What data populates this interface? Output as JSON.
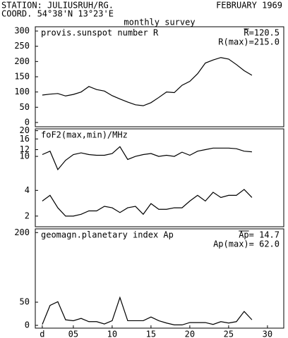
{
  "header": {
    "station": "STATION: JULIUSRUH/RG.",
    "date": "FEBRUARY 1969",
    "coord": "COORD. 54°38'N 13°23'E",
    "subtitle": "monthly survey"
  },
  "chart_data": [
    {
      "type": "line",
      "title": "provis.sunspot number R",
      "annotations": [
        "R=120.5",
        "R(max)=215.0"
      ],
      "x": [
        1,
        2,
        3,
        4,
        5,
        6,
        7,
        8,
        9,
        10,
        11,
        12,
        13,
        14,
        15,
        16,
        17,
        18,
        19,
        20,
        21,
        22,
        23,
        24,
        25,
        26,
        27,
        28
      ],
      "xlim": [
        0.1,
        32.1
      ],
      "ylim": [
        -14,
        314
      ],
      "yticks": [
        0,
        50,
        100,
        150,
        200,
        250,
        300
      ],
      "log": false,
      "series": [
        {
          "color": "#000000",
          "values": [
            90,
            93,
            95,
            87,
            92,
            100,
            118,
            108,
            103,
            88,
            77,
            67,
            58,
            55,
            65,
            82,
            100,
            98,
            122,
            135,
            160,
            195,
            205,
            213,
            208,
            190,
            170,
            155
          ]
        }
      ]
    },
    {
      "type": "line",
      "title": "foF2(max,min)/MHz",
      "x": [
        1,
        2,
        3,
        4,
        5,
        6,
        7,
        8,
        9,
        10,
        11,
        12,
        13,
        14,
        15,
        16,
        17,
        18,
        19,
        20,
        21,
        22,
        23,
        24,
        25,
        26,
        27,
        28
      ],
      "xlim": [
        0.1,
        32.1
      ],
      "ylim": [
        1.5,
        21
      ],
      "yticks": [
        2,
        4,
        10,
        12,
        16,
        20
      ],
      "log": true,
      "series": [
        {
          "color": "#000000",
          "values": [
            10.5,
            11.5,
            7,
            9,
            10.5,
            11,
            10.5,
            10.3,
            10.3,
            10.8,
            13,
            9.2,
            10,
            10.5,
            10.8,
            10,
            10.3,
            10,
            11.2,
            10.3,
            11.5,
            12,
            12.5,
            12.5,
            12.5,
            12.3,
            11.5,
            11.3
          ]
        },
        {
          "color": "#000000",
          "values": [
            3,
            3.5,
            2.5,
            2,
            2,
            2.1,
            2.3,
            2.3,
            2.6,
            2.5,
            2.2,
            2.5,
            2.6,
            2.1,
            2.8,
            2.4,
            2.4,
            2.5,
            2.5,
            3,
            3.5,
            3,
            3.8,
            3.3,
            3.5,
            3.5,
            4.1,
            3.3
          ]
        }
      ]
    },
    {
      "type": "line",
      "title": "geomagn.planetary index Ap",
      "annotations": [
        "Ap= 14.7",
        "Ap(max)= 62.0"
      ],
      "x": [
        1,
        2,
        3,
        4,
        5,
        6,
        7,
        8,
        9,
        10,
        11,
        12,
        13,
        14,
        15,
        16,
        17,
        18,
        19,
        20,
        21,
        22,
        23,
        24,
        25,
        26,
        27,
        28
      ],
      "xlim": [
        0.1,
        32.1
      ],
      "xticks": [
        {
          "value": 1,
          "label": "d"
        },
        {
          "value": 5,
          "label": "05"
        },
        10,
        15,
        20,
        25,
        30
      ],
      "ylim": [
        -6,
        208
      ],
      "yticks": [
        0,
        50,
        200
      ],
      "log": false,
      "series": [
        {
          "color": "#000000",
          "values": [
            2,
            43,
            51,
            12,
            10,
            15,
            8,
            8,
            3,
            10,
            60,
            10,
            10,
            10,
            18,
            10,
            5,
            1,
            1,
            6,
            6,
            6,
            2,
            8,
            5,
            8,
            30,
            12
          ]
        }
      ]
    }
  ]
}
